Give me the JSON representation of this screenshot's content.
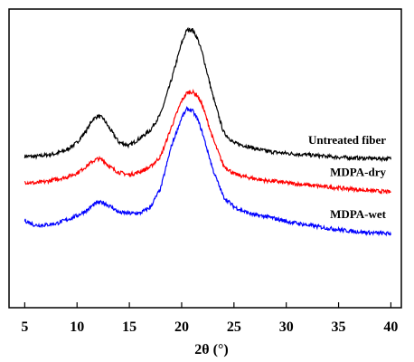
{
  "chart_data": {
    "type": "line",
    "title": "",
    "xlabel": "2θ (°)",
    "ylabel": "",
    "xlim": [
      3.5,
      41
    ],
    "ylim": [
      0,
      100
    ],
    "x_ticks": [
      5,
      10,
      15,
      20,
      25,
      30,
      35,
      40
    ],
    "y_ticks": [],
    "grid": false,
    "legend": "inline labels on right",
    "series": [
      {
        "name": "Untreated fiber",
        "color": "#000000",
        "x": [
          5,
          6,
          7,
          8,
          9,
          10,
          11,
          11.5,
          12,
          12.5,
          13,
          13.5,
          14,
          15,
          16,
          17,
          18,
          19,
          20,
          20.5,
          21,
          21.5,
          22,
          23,
          24,
          25,
          26,
          27,
          28,
          29,
          30,
          32,
          34,
          36,
          38,
          40
        ],
        "values": [
          50.7,
          50.6,
          51.1,
          51.6,
          52.8,
          55.3,
          59.9,
          63.0,
          64.2,
          63.4,
          60.6,
          58.0,
          55.4,
          54.3,
          56.7,
          59.4,
          64.9,
          76.0,
          88.6,
          93.0,
          93.2,
          90.3,
          84.9,
          70.7,
          58.8,
          55.1,
          54.3,
          53.3,
          52.5,
          52.0,
          51.7,
          51.2,
          50.6,
          50.2,
          50.0,
          49.9
        ]
      },
      {
        "name": "MDPA-dry",
        "color": "#ff0000",
        "x": [
          5,
          6,
          7,
          8,
          9,
          10,
          11,
          11.5,
          12,
          12.5,
          13,
          13.5,
          14,
          15,
          16,
          17,
          18,
          19,
          20,
          20.5,
          21,
          21.5,
          22,
          23,
          24,
          25,
          26,
          27,
          28,
          29,
          30,
          32,
          34,
          36,
          38,
          40
        ],
        "values": [
          42.1,
          41.7,
          42.2,
          43.0,
          43.7,
          45.1,
          47.6,
          49.0,
          49.9,
          49.4,
          47.6,
          46.3,
          45.3,
          44.5,
          45.5,
          47.1,
          50.7,
          60.3,
          69.3,
          71.9,
          72.3,
          71.1,
          67.6,
          56.5,
          47.6,
          44.8,
          43.9,
          43.2,
          42.6,
          42.3,
          41.8,
          41.1,
          40.4,
          39.8,
          39.2,
          38.7
        ]
      },
      {
        "name": "MDPA-wet",
        "color": "#0000ff",
        "x": [
          5,
          6,
          7,
          8,
          9,
          10,
          11,
          11.5,
          12,
          12.5,
          13,
          13.5,
          14,
          15,
          16,
          17,
          18,
          19,
          20,
          20.5,
          21,
          21.5,
          22,
          23,
          24,
          25,
          26,
          27,
          28,
          29,
          30,
          32,
          34,
          36,
          38,
          40
        ],
        "values": [
          29.2,
          27.6,
          27.7,
          28.2,
          29.4,
          30.8,
          32.7,
          34.3,
          35.2,
          35.2,
          34.3,
          33.2,
          31.9,
          31.6,
          31.6,
          33.6,
          40.0,
          53.9,
          63.6,
          66.5,
          66.1,
          63.3,
          58.4,
          46.1,
          37.1,
          33.8,
          32.2,
          31.0,
          30.6,
          29.8,
          28.9,
          27.7,
          26.6,
          25.7,
          25.1,
          24.8
        ]
      }
    ]
  }
}
